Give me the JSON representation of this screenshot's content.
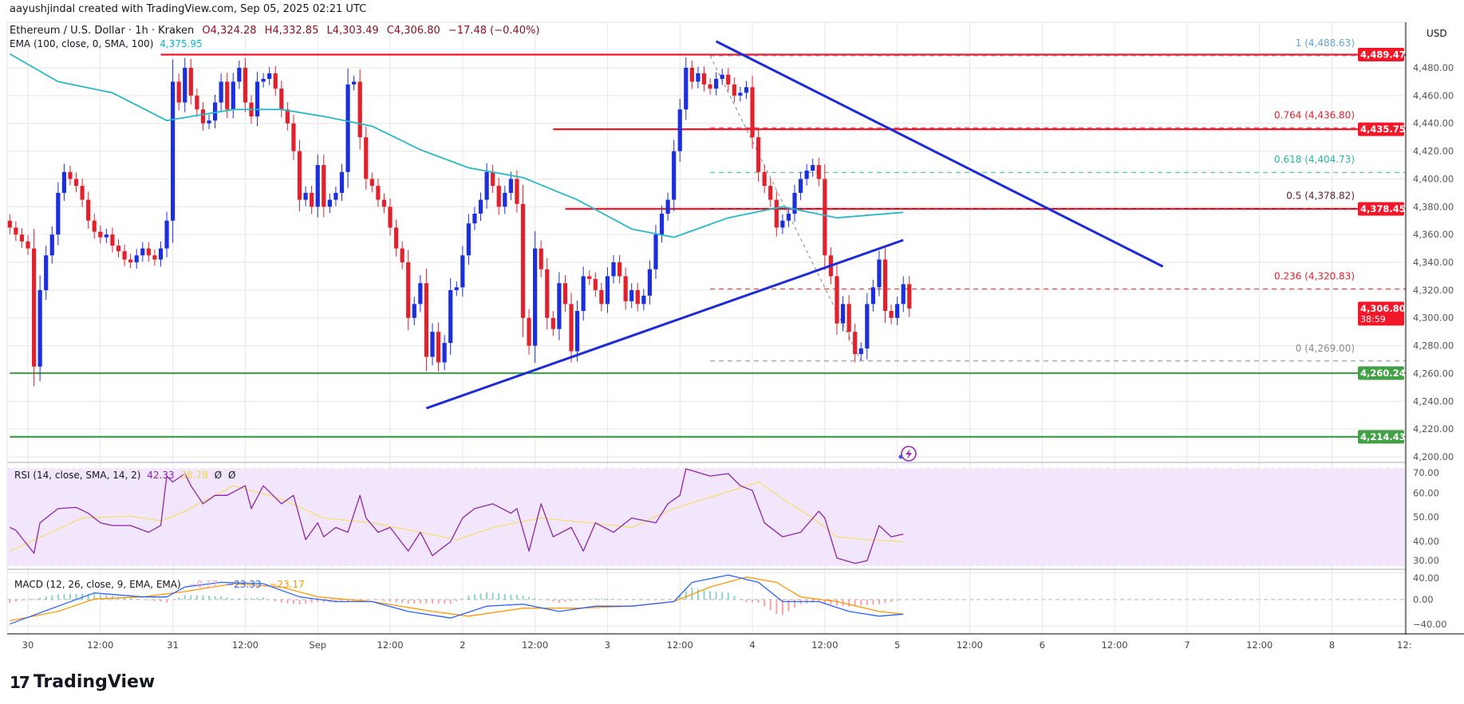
{
  "credit": "aayushjindal created with TradingView.com, Sep 05, 2025 02:21 UTC",
  "legend": {
    "symbol": "Ethereum / U.S. Dollar · 1h · Kraken",
    "open": "O4,324.28",
    "high": "H4,332.85",
    "low": "L4,303.49",
    "close": "C4,306.80",
    "change": "−17.48 (−0.40%)"
  },
  "ema_legend": {
    "label": "EMA (100, close, 0, SMA, 100)",
    "value": "4,375.95"
  },
  "rsi_legend": {
    "label": "RSI (14, close, SMA, 14, 2)",
    "value": "42.33",
    "ma_value": "38.78",
    "extra1": "Ø",
    "extra2": "Ø"
  },
  "macd_legend": {
    "label": "MACD (12, 26, close, 9, EMA, EMA)",
    "hist": "−0.17",
    "macd": "−23.33",
    "signal": "−23.17"
  },
  "logo": {
    "text": "TradingView"
  },
  "colors": {
    "up": "#1b2ee0",
    "down": "#e3202c",
    "ema": "#26b8c8",
    "trend": "#1c2bd8",
    "resistance": "#f2182a",
    "support": "#43a047",
    "rsi": "#8e24aa",
    "rsi_ma": "#f5df7a",
    "macd": "#2962ff",
    "signal": "#ff9800",
    "rsi_band": "#f2e6fc"
  },
  "chart_data": {
    "type": "candlestick",
    "interval": "1h",
    "currency": "USD",
    "first_candle_time": "08-29 21:00",
    "close": [
      4365,
      4360,
      4355,
      4350,
      4265,
      4320,
      4345,
      4360,
      4390,
      4405,
      4400,
      4395,
      4385,
      4370,
      4362,
      4358,
      4360,
      4352,
      4348,
      4342,
      4340,
      4345,
      4350,
      4345,
      4342,
      4350,
      4370,
      4470,
      4455,
      4480,
      4460,
      4450,
      4440,
      4442,
      4455,
      4470,
      4450,
      4470,
      4480,
      4455,
      4445,
      4470,
      4472,
      4476,
      4465,
      4450,
      4440,
      4420,
      4385,
      4390,
      4380,
      4410,
      4380,
      4385,
      4390,
      4405,
      4468,
      4470,
      4430,
      4400,
      4395,
      4385,
      4380,
      4365,
      4350,
      4340,
      4300,
      4310,
      4325,
      4272,
      4290,
      4268,
      4282,
      4320,
      4322,
      4345,
      4368,
      4375,
      4385,
      4405,
      4395,
      4380,
      4390,
      4400,
      4382,
      4300,
      4280,
      4350,
      4335,
      4300,
      4292,
      4325,
      4310,
      4276,
      4305,
      4330,
      4328,
      4320,
      4310,
      4330,
      4340,
      4330,
      4312,
      4320,
      4310,
      4316,
      4335,
      4360,
      4375,
      4385,
      4420,
      4450,
      4480,
      4470,
      4476,
      4468,
      4465,
      4472,
      4475,
      4468,
      4460,
      4462,
      4466,
      4430,
      4405,
      4395,
      4385,
      4365,
      4370,
      4375,
      4390,
      4400,
      4406,
      4410,
      4400,
      4345,
      4330,
      4296,
      4310,
      4290,
      4274,
      4278,
      4310,
      4322,
      4342,
      4305,
      4300,
      4310,
      4324.28,
      4306.8
    ],
    "price_axis": {
      "ticks": [
        "4,480.00",
        "4,460.00",
        "4,440.00",
        "4,420.00",
        "4,400.00",
        "4,380.00",
        "4,360.00",
        "4,340.00",
        "4,320.00",
        "4,300.00",
        "4,280.00",
        "4,260.00",
        "4,240.00",
        "4,220.00",
        "4,200.00"
      ],
      "range": [
        4200,
        4500
      ]
    },
    "time_axis": [
      "30",
      "12:00",
      "31",
      "12:00",
      "Sep",
      "12:00",
      "2",
      "12:00",
      "3",
      "12:00",
      "4",
      "12:00",
      "5",
      "12:00",
      "6",
      "12:00",
      "7",
      "12:00",
      "8",
      "12:"
    ],
    "ema100": [
      [
        "08-29 21:00",
        4490
      ],
      [
        "08-30 05:00",
        4470
      ],
      [
        "08-30 14:00",
        4462
      ],
      [
        "08-30 23:00",
        4442
      ],
      [
        "08-31 10:00",
        4450
      ],
      [
        "08-31 18:00",
        4450
      ],
      [
        "09-01 01:00",
        4445
      ],
      [
        "09-01 09:00",
        4438
      ],
      [
        "09-01 17:00",
        4421
      ],
      [
        "09-02 01:00",
        4408
      ],
      [
        "09-02 10:00",
        4401
      ],
      [
        "09-02 19:00",
        4385
      ],
      [
        "09-03 04:00",
        4364
      ],
      [
        "09-03 11:00",
        4358
      ],
      [
        "09-03 20:00",
        4372
      ],
      [
        "09-04 05:00",
        4380
      ],
      [
        "09-04 14:00",
        4372
      ],
      [
        "09-05 01:00",
        4376
      ]
    ],
    "horizontal_lines": [
      {
        "price": 4489.47,
        "label": "4,489.47",
        "from": "08-30 22:00",
        "kind": "resistance"
      },
      {
        "price": 4435.75,
        "label": "4,435.75",
        "from": "09-02 15:00",
        "kind": "resistance"
      },
      {
        "price": 4378.45,
        "label": "4,378.45",
        "from": "09-02 17:00",
        "kind": "resistance"
      },
      {
        "price": 4260.24,
        "label": "4,260.24",
        "from": "08-29 21:00",
        "kind": "support"
      },
      {
        "price": 4214.43,
        "label": "4,214.43",
        "from": "08-29 21:00",
        "kind": "support"
      }
    ],
    "last_price": {
      "label": "4,306.80",
      "countdown": "38:59",
      "price": 4306.8
    },
    "trend_lines": [
      {
        "from": [
          "09-03 18:00",
          4499
        ],
        "to": [
          "09-06 20:00",
          4337
        ]
      },
      {
        "from": [
          "09-01 18:00",
          4235
        ],
        "to": [
          "09-05 01:00",
          4356
        ]
      }
    ],
    "fib": {
      "from": [
        "09-03 17:00",
        4488.63
      ],
      "to": [
        "09-04 18:00",
        4269.0
      ],
      "levels": [
        {
          "ratio": "1",
          "price": 4488.63,
          "label": "1 (4,488.63)",
          "color": "#64a5d8"
        },
        {
          "ratio": "0.764",
          "price": 4436.8,
          "label": "0.764 (4,436.80)",
          "color": "#e3202c"
        },
        {
          "ratio": "0.618",
          "price": 4404.73,
          "label": "0.618 (4,404.73)",
          "color": "#26b89a"
        },
        {
          "ratio": "0.5",
          "price": 4378.82,
          "label": "0.5 (4,378.82)",
          "color": "#5d2030"
        },
        {
          "ratio": "0.236",
          "price": 4320.83,
          "label": "0.236 (4,320.83)",
          "color": "#e3202c"
        },
        {
          "ratio": "0",
          "price": 4269.0,
          "label": "0 (4,269.00)",
          "color": "#8a8a8a"
        }
      ]
    },
    "rsi": {
      "axis": [
        "70.00",
        "60.00",
        "50.00",
        "40.00",
        "30.00"
      ],
      "band": [
        30,
        70
      ],
      "values": [
        [
          "08-29 21:00",
          45.7
        ],
        [
          "08-29 22:00",
          44.5
        ],
        [
          "08-30 01:00",
          35
        ],
        [
          "08-30 02:00",
          47.6
        ],
        [
          "08-30 05:00",
          53.5
        ],
        [
          "08-30 08:00",
          54
        ],
        [
          "08-30 10:00",
          51.6
        ],
        [
          "08-30 12:00",
          47.6
        ],
        [
          "08-30 14:00",
          46.5
        ],
        [
          "08-30 17:00",
          46.5
        ],
        [
          "08-30 20:00",
          43.7
        ],
        [
          "08-30 22:00",
          46.5
        ],
        [
          "08-30 23:00",
          67
        ],
        [
          "08-31 00:00",
          64.5
        ],
        [
          "08-31 02:00",
          68
        ],
        [
          "08-31 03:00",
          63
        ],
        [
          "08-31 05:00",
          55.5
        ],
        [
          "08-31 07:00",
          59
        ],
        [
          "08-31 09:00",
          59
        ],
        [
          "08-31 12:00",
          63
        ],
        [
          "08-31 13:00",
          53.5
        ],
        [
          "08-31 15:00",
          63
        ],
        [
          "08-31 18:00",
          55.5
        ],
        [
          "08-31 20:00",
          59
        ],
        [
          "08-31 22:00",
          40.6
        ],
        [
          "09-01 00:00",
          47.6
        ],
        [
          "09-01 01:00",
          41.8
        ],
        [
          "09-01 03:00",
          45.7
        ],
        [
          "09-01 05:00",
          43.7
        ],
        [
          "09-01 07:00",
          59
        ],
        [
          "09-01 08:00",
          49.6
        ],
        [
          "09-01 10:00",
          43.7
        ],
        [
          "09-01 12:00",
          45.7
        ],
        [
          "09-01 15:00",
          35.9
        ],
        [
          "09-01 17:00",
          43.7
        ],
        [
          "09-01 19:00",
          34
        ],
        [
          "09-01 22:00",
          39.8
        ],
        [
          "09-02 00:00",
          49.6
        ],
        [
          "09-02 02:00",
          53.5
        ],
        [
          "09-02 05:00",
          55.5
        ],
        [
          "09-02 08:00",
          51.6
        ],
        [
          "09-02 09:00",
          53.5
        ],
        [
          "09-02 11:00",
          35.9
        ],
        [
          "09-02 13:00",
          55.5
        ],
        [
          "09-02 15:00",
          41.8
        ],
        [
          "09-02 18:00",
          45.7
        ],
        [
          "09-02 20:00",
          35.9
        ],
        [
          "09-02 22:00",
          47.6
        ],
        [
          "09-03 01:00",
          43.7
        ],
        [
          "09-03 04:00",
          49.6
        ],
        [
          "09-03 08:00",
          47.6
        ],
        [
          "09-03 10:00",
          55.5
        ],
        [
          "09-03 12:00",
          59
        ],
        [
          "09-03 13:00",
          70
        ],
        [
          "09-03 17:00",
          67
        ],
        [
          "09-03 20:00",
          68
        ],
        [
          "09-03 22:00",
          63
        ],
        [
          "09-04 00:00",
          61
        ],
        [
          "09-04 02:00",
          47.6
        ],
        [
          "09-04 05:00",
          41.8
        ],
        [
          "09-04 08:00",
          43.7
        ],
        [
          "09-04 11:00",
          52.4
        ],
        [
          "09-04 12:00",
          49.6
        ],
        [
          "09-04 14:00",
          33
        ],
        [
          "09-04 17:00",
          30.8
        ],
        [
          "09-04 19:00",
          31.9
        ],
        [
          "09-04 21:00",
          46.5
        ],
        [
          "09-04 23:00",
          41.8
        ],
        [
          "09-05 01:00",
          42.9
        ]
      ],
      "ma": [
        [
          "08-29 21:00",
          35.9
        ],
        [
          "08-30 09:00",
          49.6
        ],
        [
          "08-30 17:00",
          50.4
        ],
        [
          "08-30 22:00",
          48.4
        ],
        [
          "08-31 02:00",
          52.4
        ],
        [
          "08-31 10:00",
          63
        ],
        [
          "08-31 18:00",
          57.5
        ],
        [
          "09-01 01:00",
          49.6
        ],
        [
          "09-01 09:00",
          47.6
        ],
        [
          "09-01 17:00",
          43.7
        ],
        [
          "09-01 23:00",
          40.6
        ],
        [
          "09-02 05:00",
          45.7
        ],
        [
          "09-02 13:00",
          49.6
        ],
        [
          "09-02 21:00",
          47.6
        ],
        [
          "09-03 04:00",
          45.7
        ],
        [
          "09-03 11:00",
          53.5
        ],
        [
          "09-03 18:00",
          59
        ],
        [
          "09-04 01:00",
          64.5
        ],
        [
          "09-04 05:00",
          57.5
        ],
        [
          "09-04 10:00",
          49.6
        ],
        [
          "09-04 14:00",
          41.8
        ],
        [
          "09-04 19:00",
          40.6
        ],
        [
          "09-05 01:00",
          39.8
        ]
      ]
    },
    "macd": {
      "axis": [
        "40.00",
        "0.00",
        "−40.00"
      ],
      "macd": [
        [
          "08-29 21:00",
          -37
        ],
        [
          "08-30 05:00",
          -10
        ],
        [
          "08-30 11:00",
          10
        ],
        [
          "08-30 19:00",
          4
        ],
        [
          "08-30 23:00",
          4
        ],
        [
          "08-31 02:00",
          19
        ],
        [
          "08-31 08:00",
          26
        ],
        [
          "08-31 15:00",
          24
        ],
        [
          "08-31 21:00",
          4
        ],
        [
          "09-01 03:00",
          -3
        ],
        [
          "09-01 09:00",
          -3
        ],
        [
          "09-01 15:00",
          -18
        ],
        [
          "09-01 22:00",
          -28
        ],
        [
          "09-02 04:00",
          -10
        ],
        [
          "09-02 10:00",
          -7
        ],
        [
          "09-02 16:00",
          -18
        ],
        [
          "09-02 22:00",
          -10
        ],
        [
          "09-03 04:00",
          -10
        ],
        [
          "09-03 11:00",
          -3
        ],
        [
          "09-03 14:00",
          26
        ],
        [
          "09-03 20:00",
          37
        ],
        [
          "09-04 01:00",
          26
        ],
        [
          "09-04 05:00",
          -3
        ],
        [
          "09-04 11:00",
          -3
        ],
        [
          "09-04 16:00",
          -18
        ],
        [
          "09-04 21:00",
          -25
        ],
        [
          "09-05 01:00",
          -22
        ]
      ],
      "signal": [
        [
          "08-29 21:00",
          -32
        ],
        [
          "08-30 05:00",
          -18
        ],
        [
          "08-30 11:00",
          1
        ],
        [
          "08-30 19:00",
          4
        ],
        [
          "08-31 02:00",
          12
        ],
        [
          "08-31 10:00",
          24
        ],
        [
          "08-31 18:00",
          19
        ],
        [
          "09-01 00:00",
          4
        ],
        [
          "09-01 09:00",
          -3
        ],
        [
          "09-01 19:00",
          -18
        ],
        [
          "09-02 01:00",
          -25
        ],
        [
          "09-02 10:00",
          -13
        ],
        [
          "09-02 19:00",
          -13
        ],
        [
          "09-03 04:00",
          -10
        ],
        [
          "09-03 11:00",
          -3
        ],
        [
          "09-03 17:00",
          19
        ],
        [
          "09-03 23:00",
          34
        ],
        [
          "09-04 04:00",
          26
        ],
        [
          "09-04 08:00",
          4
        ],
        [
          "09-04 14:00",
          -3
        ],
        [
          "09-04 21:00",
          -18
        ],
        [
          "09-05 01:00",
          -22
        ]
      ]
    }
  }
}
